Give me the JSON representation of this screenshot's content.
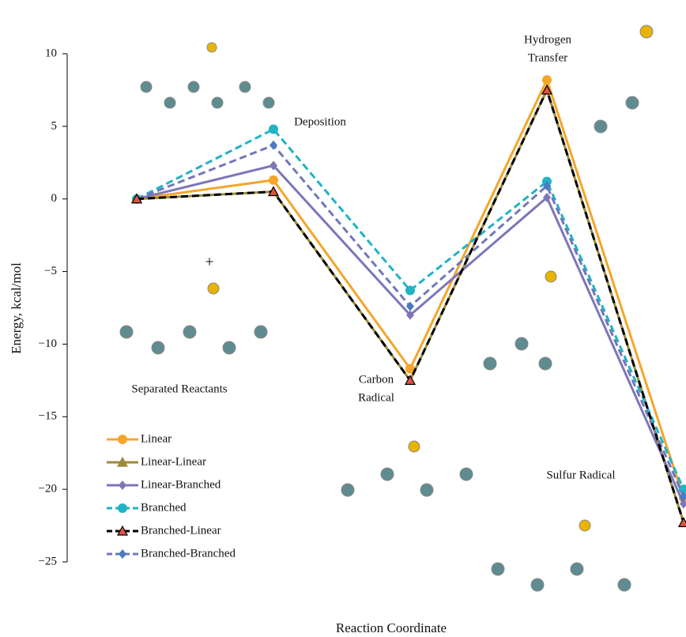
{
  "chart_data": {
    "type": "line",
    "y_label": "Energy, kcal/mol",
    "x_label": "Reaction Coordinate",
    "categories": [
      null,
      null,
      null,
      null,
      null
    ],
    "annotations": [
      {
        "lines": [
          "Separated Reactants"
        ]
      },
      {
        "lines": [
          "Deposition"
        ]
      },
      {
        "lines": [
          "Carbon",
          "Radical"
        ]
      },
      {
        "lines": [
          "Hydrogen",
          "Transfer"
        ]
      },
      {
        "lines": [
          "Sulfur Radical"
        ]
      },
      {
        "lines": [
          "+"
        ]
      }
    ],
    "ylim": [
      -25,
      10
    ],
    "yticks": [
      10,
      5,
      0,
      {
        "value": -5,
        "label": "−5"
      },
      {
        "value": -10,
        "label": "−10"
      },
      {
        "value": -15,
        "label": "−15"
      },
      {
        "value": -20,
        "label": "−20"
      },
      {
        "value": -25,
        "label": "−25"
      }
    ],
    "series": [
      {
        "name": "Linear",
        "color": "#f5a52a",
        "marker": "circle",
        "dashed": false,
        "values": [
          0,
          1.3,
          -11.7,
          8.2,
          -20.6
        ]
      },
      {
        "name": "Linear-Linear",
        "color": "#9c8a3a",
        "marker": "triangle",
        "dashed": false,
        "values": [
          0,
          0.5,
          -12.5,
          7.5,
          -22.3
        ]
      },
      {
        "name": "Linear-Branched",
        "color": "#7d76b8",
        "marker": "diamond",
        "dashed": false,
        "values": [
          0,
          2.3,
          -8.0,
          0.1,
          -21.0
        ]
      },
      {
        "name": "Branched",
        "color": "#20b3c4",
        "marker": "circle",
        "dashed": true,
        "values": [
          0,
          4.8,
          -6.3,
          1.2,
          -20.0
        ]
      },
      {
        "name": "Branched-Linear",
        "color": "#000000",
        "marker_color": "#e0533f",
        "marker": "triangle",
        "dashed": true,
        "values": [
          0,
          0.5,
          -12.5,
          7.5,
          -22.3
        ]
      },
      {
        "name": "Branched-Branched",
        "color": "#7377b8",
        "marker_color": "#4a7ac2",
        "marker": "diamond",
        "dashed": true,
        "values": [
          0,
          3.7,
          -7.4,
          0.9,
          -20.5
        ]
      }
    ]
  }
}
